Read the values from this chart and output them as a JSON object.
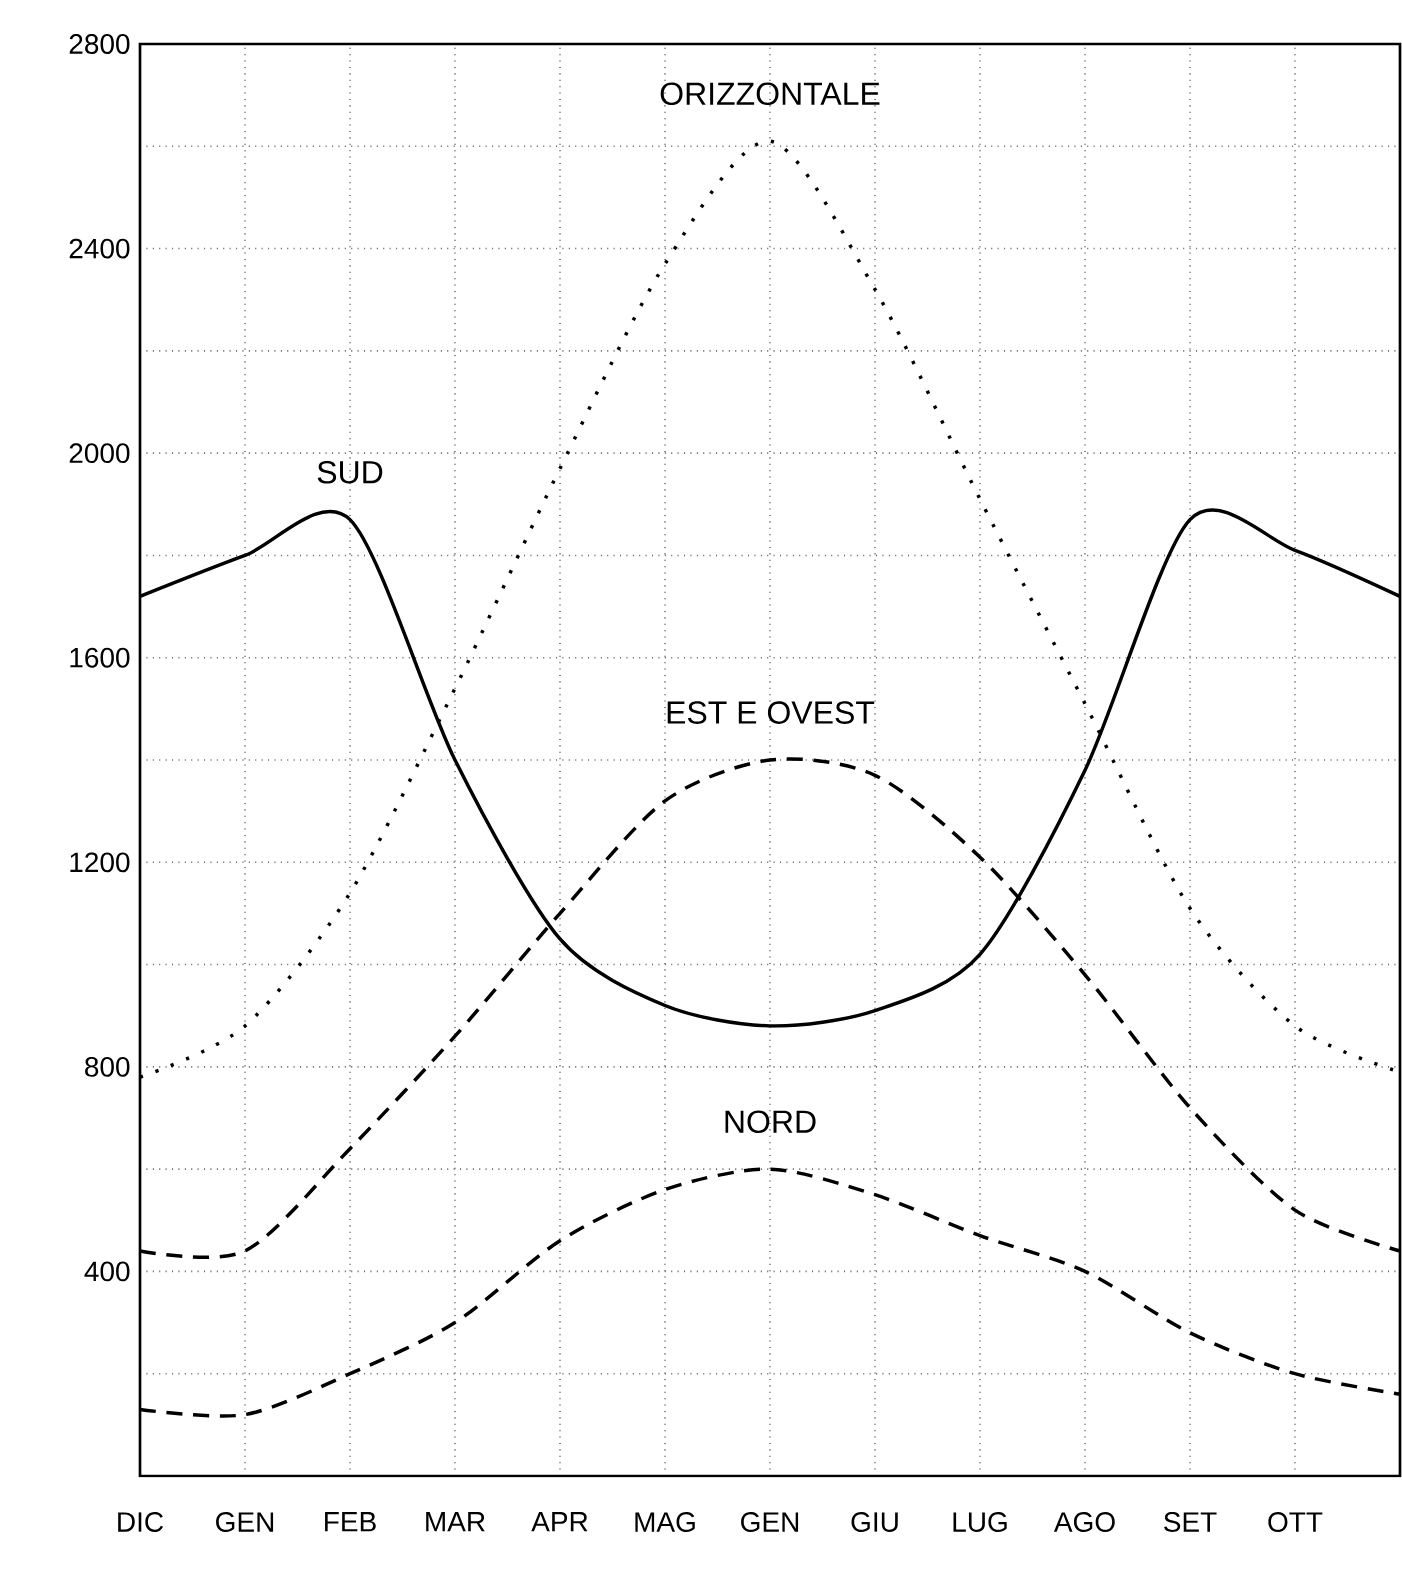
{
  "chart_data": {
    "type": "line",
    "categories": [
      "DIC",
      "GEN",
      "FEB",
      "MAR",
      "APR",
      "MAG",
      "GEN",
      "GIU",
      "LUG",
      "AGO",
      "SET",
      "OTT",
      null
    ],
    "series": [
      {
        "name": "SUD",
        "color": "#000000",
        "line_style": "solid",
        "values": [
          1720,
          1800,
          1870,
          1400,
          1050,
          920,
          880,
          910,
          1020,
          1380,
          1870,
          1810,
          1720
        ]
      },
      {
        "name": "ORIZZONTALE",
        "color": "#000000",
        "line_style": "dotted",
        "values": [
          780,
          880,
          1140,
          1540,
          1970,
          2370,
          2610,
          2320,
          1910,
          1510,
          1110,
          880,
          790
        ]
      },
      {
        "name": "EST E OVEST",
        "color": "#000000",
        "line_style": "dashed",
        "values": [
          440,
          440,
          640,
          860,
          1100,
          1320,
          1400,
          1370,
          1210,
          980,
          720,
          520,
          440
        ]
      },
      {
        "name": "NORD",
        "color": "#000000",
        "line_style": "dashed",
        "values": [
          130,
          120,
          200,
          300,
          460,
          560,
          600,
          550,
          470,
          400,
          280,
          200,
          160
        ]
      }
    ],
    "ylim": [
      0,
      2800
    ],
    "yticks": [
      {
        "value": 0,
        "label": null
      },
      {
        "value": 200,
        "label": null
      },
      400,
      {
        "value": 600,
        "label": null
      },
      800,
      {
        "value": 1000,
        "label": null
      },
      1200,
      {
        "value": 1400,
        "label": null
      },
      1600,
      {
        "value": 1800,
        "label": null
      },
      2000,
      {
        "value": 2200,
        "label": null
      },
      2400,
      {
        "value": 2600,
        "label": null
      },
      2800
    ],
    "grid": true,
    "legend": false,
    "marker": "none"
  }
}
